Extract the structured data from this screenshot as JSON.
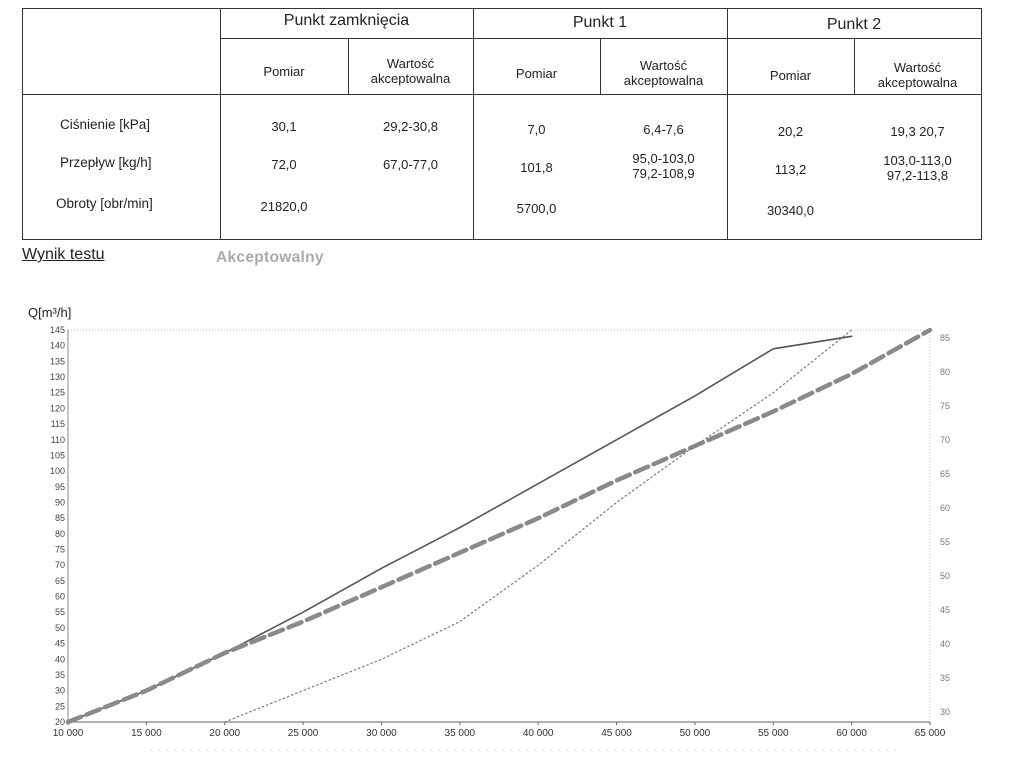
{
  "table": {
    "groups": [
      "Punkt zamknięcia",
      "Punkt 1",
      "Punkt 2"
    ],
    "subheaders": {
      "measure": "Pomiar",
      "accepted_line1": "Wartość",
      "accepted_line2": "akceptowalna"
    },
    "rows": [
      {
        "label": "Ciśnienie [kPa]",
        "zamk_measure": "30,1",
        "zamk_accept": "29,2-30,8",
        "p1_measure": "7,0",
        "p1_accept": "6,4-7,6",
        "p1_accept2": "",
        "p2_measure": "20,2",
        "p2_accept": "19,3 20,7",
        "p2_accept2": ""
      },
      {
        "label": "Przepływ [kg/h]",
        "zamk_measure": "72,0",
        "zamk_accept": "67,0-77,0",
        "p1_measure": "101,8",
        "p1_accept": "95,0-103,0",
        "p1_accept2": "79,2-108,9",
        "p2_measure": "113,2",
        "p2_accept": "103,0-113,0",
        "p2_accept2": "97,2-113,8"
      },
      {
        "label": "Obroty [obr/min]",
        "zamk_measure": "21820,0",
        "zamk_accept": "",
        "p1_measure": "5700,0",
        "p1_accept": "",
        "p1_accept2": "",
        "p2_measure": "30340,0",
        "p2_accept": "",
        "p2_accept2": ""
      }
    ]
  },
  "result": {
    "label": "Wynik testu",
    "value": "Akceptowalny"
  },
  "chart_data": {
    "type": "line",
    "ylabel": "Q[m³/h]",
    "xlim": [
      10000,
      65000
    ],
    "ylim": [
      20,
      145
    ],
    "x_ticks": [
      10000,
      15000,
      20000,
      25000,
      30000,
      35000,
      40000,
      45000,
      50000,
      55000,
      60000,
      65000
    ],
    "x_tick_labels": [
      "10 000",
      "15 000",
      "20 000",
      "25 000",
      "30 000",
      "35 000",
      "40 000",
      "45 000",
      "50 000",
      "55 000",
      "60 000",
      "65 000"
    ],
    "y_ticks": [
      20,
      25,
      30,
      35,
      40,
      45,
      50,
      55,
      60,
      65,
      70,
      75,
      80,
      85,
      90,
      95,
      100,
      105,
      110,
      115,
      120,
      125,
      130,
      135,
      140,
      145
    ],
    "right_axis_ticks": [
      "85",
      "80",
      "75",
      "70",
      "65",
      "60",
      "55",
      "50",
      "45",
      "40",
      "35",
      "30"
    ],
    "grid": false,
    "series": [
      {
        "style": "solid",
        "color": "#555555",
        "x": [
          10000,
          15000,
          20000,
          25000,
          30000,
          35000,
          40000,
          45000,
          50000,
          55000,
          60000
        ],
        "y": [
          20,
          30,
          42,
          55,
          69,
          82,
          96,
          110,
          124,
          139,
          143
        ]
      },
      {
        "style": "dashed",
        "color": "#8a8a8a",
        "x": [
          10000,
          15000,
          20000,
          25000,
          30000,
          35000,
          40000,
          45000,
          50000,
          55000,
          60000,
          65000
        ],
        "y": [
          20,
          30,
          42,
          52,
          63,
          74,
          85,
          97,
          108,
          119,
          131,
          145
        ]
      },
      {
        "style": "dotted",
        "color": "#777777",
        "x": [
          20000,
          25000,
          30000,
          35000,
          40000,
          45000,
          50000,
          55000,
          60000
        ],
        "y": [
          20,
          30,
          40,
          52,
          70,
          90,
          108,
          125,
          145
        ]
      }
    ]
  }
}
